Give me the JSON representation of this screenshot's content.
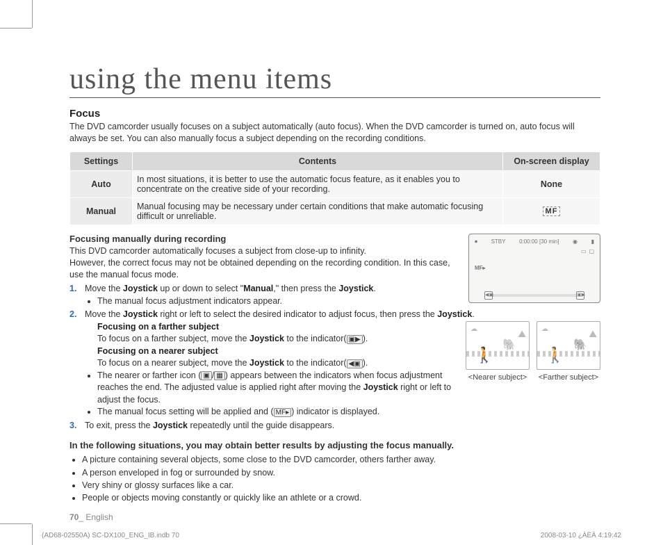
{
  "page": {
    "title": "using the menu items",
    "section": "Focus",
    "intro": "The DVD camcorder usually focuses on a subject automatically (auto focus). When the DVD camcorder is turned on, auto focus will always be set. You can also manually focus a subject depending on the recording conditions.",
    "footer_num": "70",
    "footer_lang": "_ English"
  },
  "table": {
    "headers": {
      "settings": "Settings",
      "contents": "Contents",
      "osd": "On-screen display"
    },
    "rows": [
      {
        "name": "Auto",
        "desc": "In most situations, it is better to use the automatic focus feature, as it enables you to concentrate on the creative side of your recording.",
        "osd": "None",
        "osd_is_text": true
      },
      {
        "name": "Manual",
        "desc": "Manual focusing may be necessary under certain conditions that make automatic focusing difficult or unreliable.",
        "osd": "MF",
        "osd_is_text": false
      }
    ]
  },
  "lcd": {
    "stby": "STBY",
    "time": "0:00:00 [30 min]",
    "mf": "MF▸",
    "knob_l": "◀▣",
    "knob_r": "▣▶"
  },
  "manual": {
    "heading": "Focusing manually during recording",
    "p1": "This DVD camcorder automatically focuses a subject from close-up to infinity.",
    "p2": "However, the correct focus may not be obtained depending on the recording condition. In this case, use the manual focus mode."
  },
  "steps": {
    "s1_a": "Move the ",
    "s1_b": "Joystick",
    "s1_c": " up or down to select \"",
    "s1_d": "Manual",
    "s1_e": ",\" then press the ",
    "s1_f": "Joystick",
    "s1_g": ".",
    "s1_bullet": "The manual focus adjustment indicators appear.",
    "s2_a": "Move the ",
    "s2_b": "Joystick",
    "s2_c": " right or left to select the desired indicator to adjust focus, then press the ",
    "s2_d": "Joystick",
    "s2_e": ".",
    "far_h": "Focusing on a farther subject",
    "far_a": "To focus on a farther subject, move the ",
    "far_b": "Joystick",
    "far_c": " to the indicator(",
    "far_d": ").",
    "near_h": "Focusing on a nearer subject",
    "near_a": "To focus on a nearer subject, move the ",
    "near_b": "Joystick",
    "near_c": " to the indicator(",
    "near_d": ").",
    "b1_a": "The nearer or farther icon (",
    "b1_b": "/",
    "b1_c": ") appears between the indicators when focus adjustment reaches the end. The adjusted value is applied right after moving the ",
    "b1_d": "Joystick",
    "b1_e": " right or left to adjust the focus.",
    "b2_a": "The manual focus setting will be applied and (",
    "b2_b": ") indicator is displayed.",
    "s3_a": "To exit, press the ",
    "s3_b": "Joystick",
    "s3_c": " repeatedly until the guide disappears."
  },
  "thumbs": {
    "near": "<Nearer subject>",
    "far": "<Farther subject>"
  },
  "situations": {
    "heading": "In the following situations, you may obtain better results by adjusting the focus manually.",
    "items": [
      "A picture containing several objects, some close to the DVD camcorder, others farther away.",
      "A person enveloped in fog or surrounded by snow.",
      "Very shiny or glossy surfaces like a car.",
      "People or objects moving constantly or quickly like an athlete or a crowd."
    ]
  },
  "icons": {
    "far": "▣▶",
    "near": "◀▣",
    "nearer_sym": "▣",
    "farther_sym": "▦",
    "mf": "MF▸"
  },
  "print": {
    "left": "(AD68-02550A) SC-DX100_ENG_IB.indb   70",
    "right": "2008-03-10   ¿ÀÈÄ 4:19:42"
  },
  "colors": {
    "accent": "#2e6bb8",
    "grey_header": "#d9d9d9",
    "grey_cell": "#ececec"
  }
}
